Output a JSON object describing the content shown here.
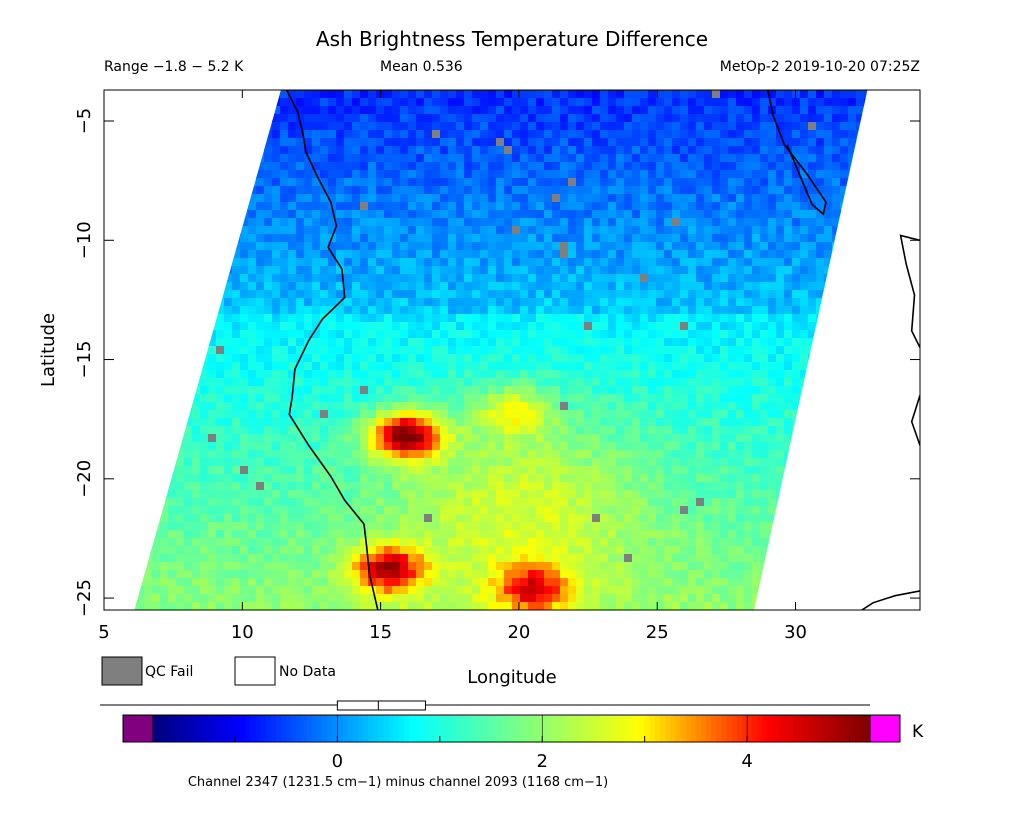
{
  "chart_data": {
    "type": "heatmap",
    "title": "Ash Brightness Temperature Difference",
    "range_text": "Range −1.8 − 5.2 K",
    "mean_text": "Mean 0.536",
    "satellite_time": "MetOp-2 2019-10-20 07:25Z",
    "xlabel": "Longitude",
    "ylabel": "Latitude",
    "xlim": [
      5,
      34.5
    ],
    "ylim": [
      -25.5,
      -3.7
    ],
    "xticks": [
      5,
      10,
      15,
      20,
      25,
      30
    ],
    "yticks": [
      -5,
      -10,
      -15,
      -20,
      -25
    ],
    "xtick_labels": [
      "5",
      "10",
      "15",
      "20",
      "25",
      "30"
    ],
    "ytick_labels": [
      "−5",
      "−10",
      "−15",
      "−20",
      "−25"
    ],
    "swath": {
      "left_edge": [
        [
          11.4,
          -3.7
        ],
        [
          6.1,
          -25.5
        ]
      ],
      "right_edge": [
        [
          32.6,
          -3.7
        ],
        [
          28.5,
          -25.5
        ]
      ]
    },
    "value_range": [
      -1.8,
      5.2
    ],
    "hotspots": [
      {
        "lon": 15.9,
        "lat": -18.2,
        "value": 4.9
      },
      {
        "lon": 15.3,
        "lat": -23.8,
        "value": 3.9
      },
      {
        "lon": 20.5,
        "lat": -24.6,
        "value": 3.2
      },
      {
        "lon": 19.8,
        "lat": -17.2,
        "value": 2.4
      }
    ],
    "legend": {
      "qc_fail": "QC Fail",
      "no_data": "No Data"
    },
    "colorbar": {
      "min": -1.8,
      "max": 5.2,
      "ticks": [
        0,
        2,
        4
      ],
      "tick_labels": [
        "0",
        "2",
        "4"
      ],
      "unit": "K",
      "box_range": [
        0,
        0.86
      ],
      "box_median": 0.4
    },
    "footnote": "Channel 2347 (1231.5 cm−1) minus channel 2093 (1168 cm−1)"
  },
  "colors": {
    "qc_fail": "#7f7f7f",
    "below_range": "#800080",
    "above_range": "#ff00ff",
    "coastline": "#000000"
  }
}
